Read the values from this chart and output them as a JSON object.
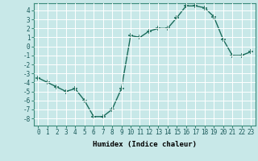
{
  "x": [
    0,
    1,
    2,
    3,
    4,
    5,
    6,
    7,
    8,
    9,
    10,
    11,
    12,
    13,
    14,
    15,
    16,
    17,
    18,
    19,
    20,
    21,
    22,
    23
  ],
  "y": [
    -3.5,
    -4.0,
    -4.5,
    -5.0,
    -4.7,
    -6.0,
    -7.8,
    -7.8,
    -7.0,
    -4.7,
    1.2,
    1.0,
    1.7,
    2.0,
    2.0,
    3.2,
    4.5,
    4.5,
    4.3,
    3.3,
    0.8,
    -1.0,
    -1.0,
    -0.6
  ],
  "line_color": "#1a6b5a",
  "marker_color": "#1a6b5a",
  "bg_color": "#c8e8e8",
  "grid_color": "#ffffff",
  "xlabel": "Humidex (Indice chaleur)",
  "xlim": [
    -0.5,
    23.5
  ],
  "ylim": [
    -8.8,
    4.8
  ],
  "xticks": [
    0,
    1,
    2,
    3,
    4,
    5,
    6,
    7,
    8,
    9,
    10,
    11,
    12,
    13,
    14,
    15,
    16,
    17,
    18,
    19,
    20,
    21,
    22,
    23
  ],
  "yticks": [
    -8,
    -7,
    -6,
    -5,
    -4,
    -3,
    -2,
    -1,
    0,
    1,
    2,
    3,
    4
  ],
  "xlabel_fontsize": 6.5,
  "tick_fontsize": 5.5,
  "marker_size": 4,
  "line_width": 1.0,
  "spine_color": "#3a8a7a",
  "tick_color": "#1a5a5a"
}
